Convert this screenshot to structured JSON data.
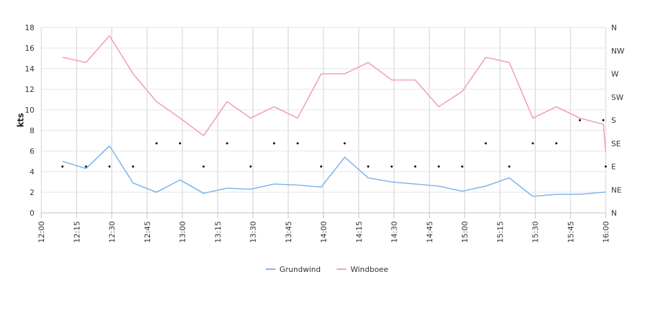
{
  "chart_data": {
    "type": "line",
    "ylabel": "kts",
    "ylim": [
      0,
      18
    ],
    "y_ticks": [
      "0",
      "2",
      "4",
      "6",
      "8",
      "10",
      "12",
      "14",
      "16",
      "18"
    ],
    "x_range_minutes": [
      0,
      240
    ],
    "x_tick_labels": [
      "12:00",
      "12:15",
      "12:30",
      "12:45",
      "13:00",
      "13:15",
      "13:30",
      "13:45",
      "14:00",
      "14:15",
      "14:30",
      "14:45",
      "15:00",
      "15:15",
      "15:30",
      "15:45",
      "16:00"
    ],
    "y2_labels": [
      "N",
      "NE",
      "E",
      "SE",
      "S",
      "SW",
      "W",
      "NW",
      "N"
    ],
    "x": [
      "12:09",
      "12:19",
      "12:29",
      "12:39",
      "12:49",
      "12:59",
      "13:09",
      "13:19",
      "13:29",
      "13:39",
      "13:49",
      "13:59",
      "14:09",
      "14:19",
      "14:29",
      "14:39",
      "14:49",
      "14:59",
      "15:09",
      "15:19",
      "15:29",
      "15:39",
      "15:49",
      "15:59",
      "16:00"
    ],
    "series": [
      {
        "name": "Grundwind",
        "color": "#7cb5ec",
        "values": [
          5.0,
          4.3,
          6.5,
          2.9,
          2.0,
          3.2,
          1.9,
          2.4,
          2.3,
          2.8,
          2.7,
          2.5,
          5.4,
          3.4,
          3.0,
          2.8,
          2.6,
          2.1,
          2.6,
          3.4,
          1.6,
          1.8,
          1.8,
          2.0,
          2.0
        ]
      },
      {
        "name": "Windboee",
        "color": "#f29ac8",
        "values": [
          15.1,
          14.6,
          17.2,
          13.5,
          10.8,
          9.2,
          7.5,
          10.8,
          9.2,
          10.3,
          9.2,
          13.5,
          13.5,
          14.6,
          12.9,
          12.9,
          10.3,
          11.8,
          15.1,
          14.6,
          9.2,
          10.3,
          9.2,
          8.6,
          5.9
        ]
      }
    ],
    "direction_markers": {
      "color": "#000000",
      "x": [
        "12:09",
        "12:19",
        "12:29",
        "12:39",
        "12:49",
        "12:59",
        "13:09",
        "13:19",
        "13:29",
        "13:39",
        "13:49",
        "13:59",
        "14:09",
        "14:19",
        "14:29",
        "14:39",
        "14:49",
        "14:59",
        "15:09",
        "15:19",
        "15:29",
        "15:39",
        "15:49",
        "15:59",
        "16:00"
      ],
      "values": [
        "E",
        "E",
        "E",
        "E",
        "SE",
        "SE",
        "E",
        "SE",
        "E",
        "SE",
        "SE",
        "E",
        "SE",
        "E",
        "E",
        "E",
        "E",
        "E",
        "SE",
        "E",
        "SE",
        "SE",
        "S",
        "S",
        "E"
      ]
    },
    "grid": true,
    "legend_position": "bottom-center"
  }
}
